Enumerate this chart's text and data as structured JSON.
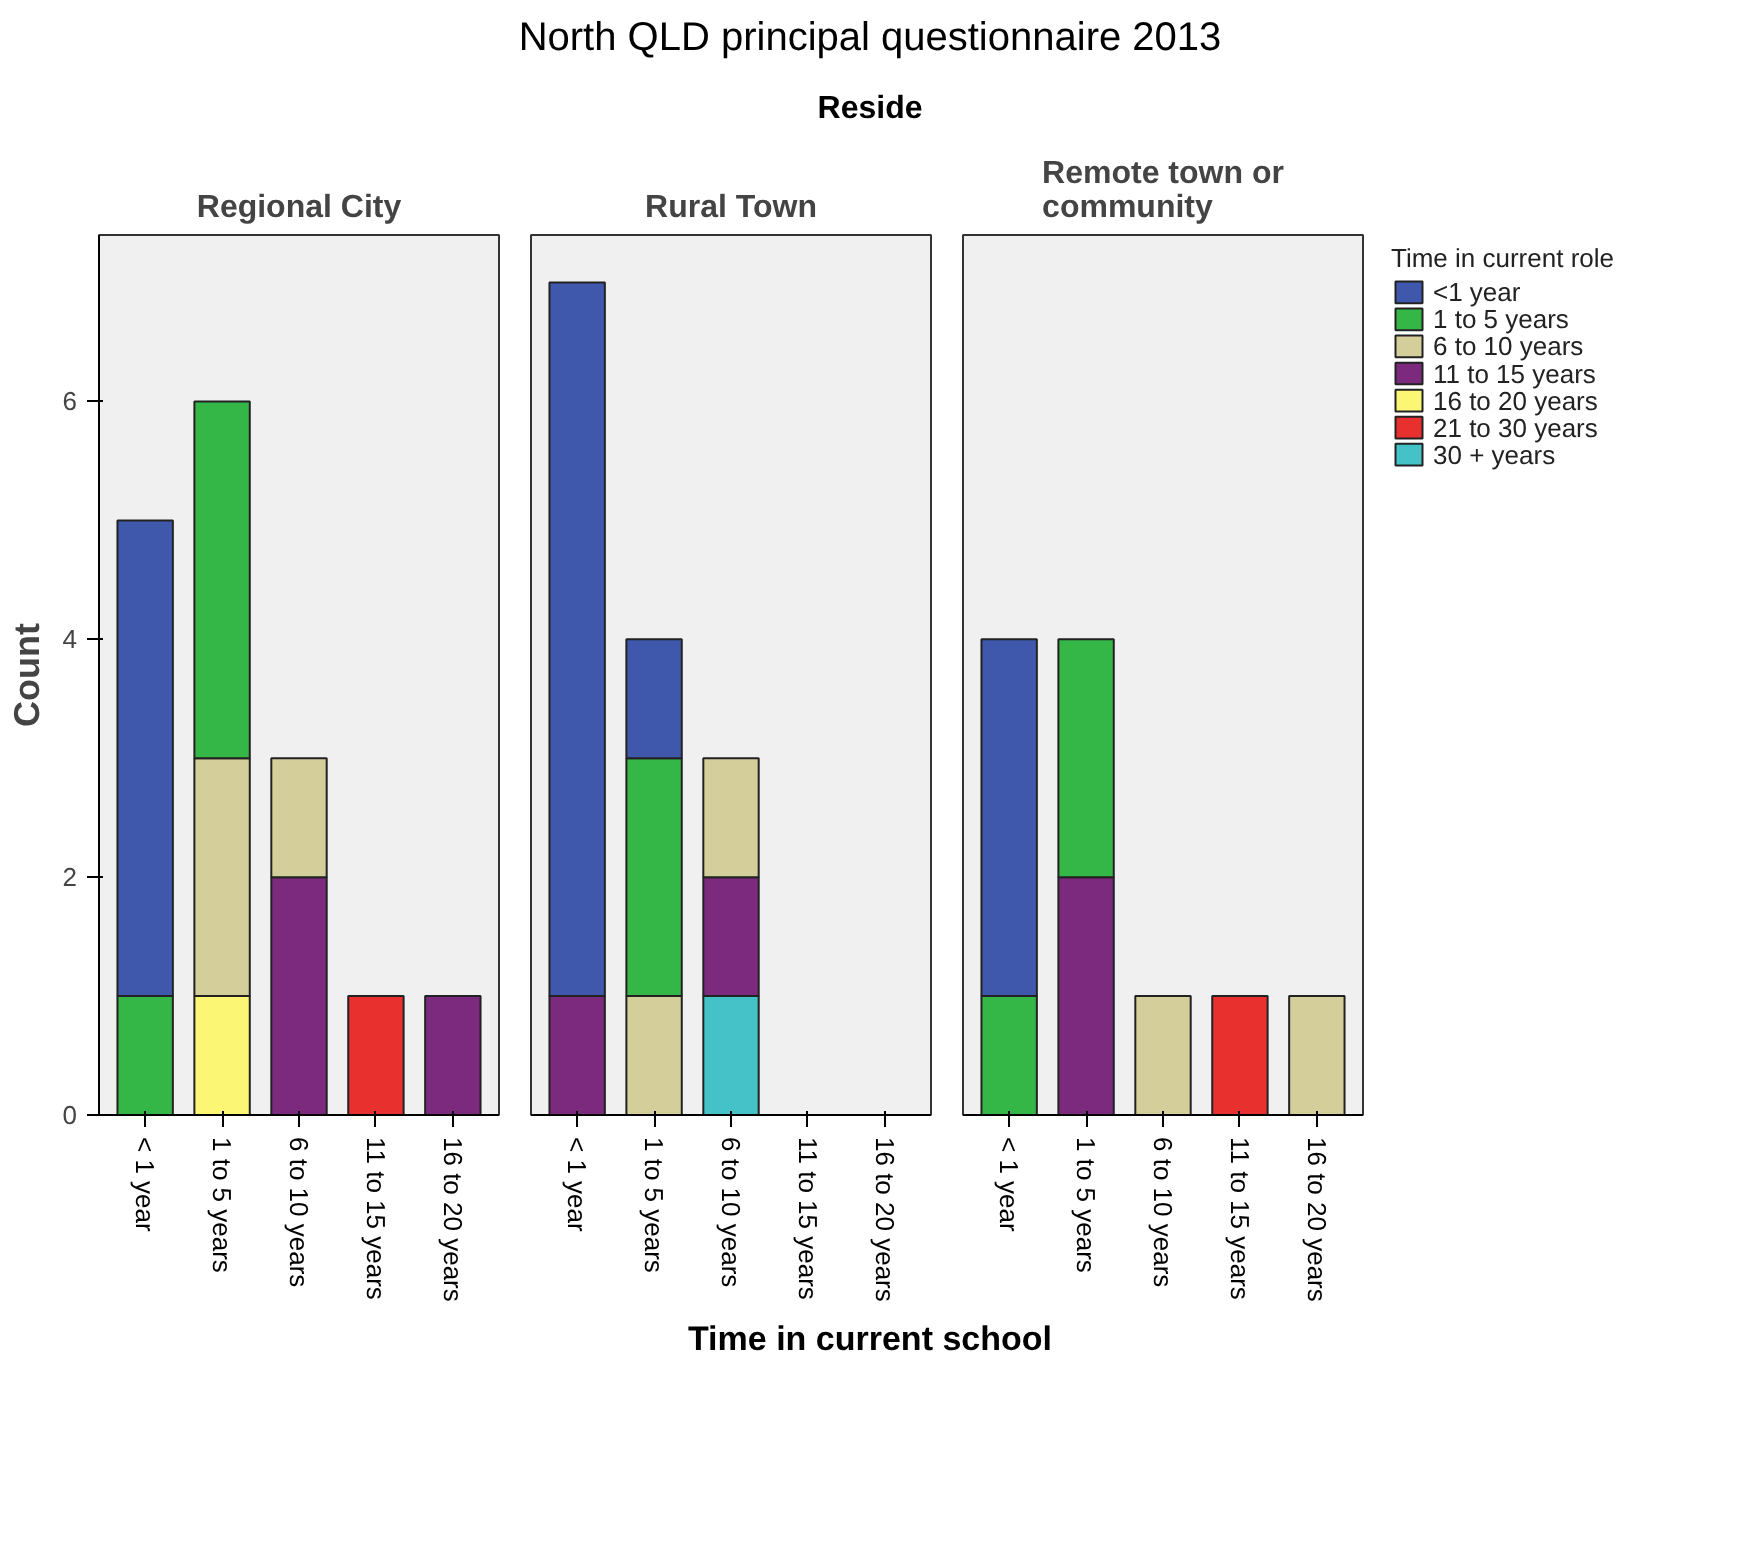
{
  "chart_data": [
    {
      "type": "bar",
      "stacked": true,
      "title": "Regional City",
      "annotations": [
        "North QLD principal questionnaire 2013",
        "Reside"
      ],
      "ylabel": "Count",
      "categories": [
        "< 1 year",
        "1 to 5 years",
        "6 to 10 years",
        "11 to 15 years",
        "16 to 20 years"
      ],
      "ylim": [
        0,
        7.4
      ],
      "yticks": [
        0,
        2,
        4,
        6
      ],
      "series": [
        {
          "color": "#45c2c7",
          "values": [
            null,
            null,
            null,
            null,
            null
          ]
        },
        {
          "color": "#e8312e",
          "values": [
            null,
            null,
            null,
            1,
            null
          ]
        },
        {
          "color": "#fbf774",
          "values": [
            null,
            1,
            null,
            null,
            null
          ]
        },
        {
          "color": "#7b2a7e",
          "values": [
            null,
            null,
            2,
            null,
            1
          ]
        },
        {
          "color": "#d4ce9a",
          "values": [
            null,
            2,
            1,
            null,
            null
          ]
        },
        {
          "color": "#35b748",
          "values": [
            1,
            3,
            null,
            null,
            null
          ]
        },
        {
          "color": "#3f58ab",
          "values": [
            4,
            null,
            null,
            null,
            null
          ]
        }
      ]
    },
    {
      "type": "bar",
      "stacked": true,
      "title": "Rural Town",
      "xlabel": "Time in current school",
      "tick_labels": "x",
      "categories": [
        "< 1 year",
        "1 to 5 years",
        "6 to 10 years",
        "11 to 15 years",
        "16 to 20 years"
      ],
      "ylim": [
        0,
        7.4
      ],
      "yticks": [
        0,
        2,
        4,
        6
      ],
      "series": [
        {
          "color": "#45c2c7",
          "values": [
            null,
            null,
            1,
            null,
            null
          ]
        },
        {
          "color": "#e8312e",
          "values": [
            null,
            null,
            null,
            null,
            null
          ]
        },
        {
          "color": "#fbf774",
          "values": [
            null,
            null,
            null,
            null,
            null
          ]
        },
        {
          "color": "#7b2a7e",
          "values": [
            1,
            null,
            1,
            null,
            null
          ]
        },
        {
          "color": "#d4ce9a",
          "values": [
            null,
            1,
            1,
            null,
            null
          ]
        },
        {
          "color": "#35b748",
          "values": [
            null,
            2,
            null,
            null,
            null
          ]
        },
        {
          "color": "#3f58ab",
          "values": [
            6,
            1,
            null,
            null,
            null
          ]
        }
      ]
    },
    {
      "type": "bar",
      "stacked": true,
      "title": "Remote town or community",
      "legend": "right",
      "legend_title": "Time in current role",
      "tick_labels": "x",
      "categories": [
        "< 1 year",
        "1 to 5 years",
        "6 to 10 years",
        "11 to 15 years",
        "16 to 20 years"
      ],
      "ylim": [
        0,
        7.4
      ],
      "yticks": [
        0,
        2,
        4,
        6
      ],
      "series": [
        {
          "name": "30 + years",
          "color": "#45c2c7",
          "values": [
            null,
            null,
            null,
            null,
            null
          ]
        },
        {
          "name": "21 to 30 years",
          "color": "#e8312e",
          "values": [
            null,
            null,
            null,
            1,
            null
          ]
        },
        {
          "name": "16 to 20 years",
          "color": "#fbf774",
          "values": [
            null,
            null,
            null,
            null,
            null
          ]
        },
        {
          "name": "11 to 15 years",
          "color": "#7b2a7e",
          "values": [
            null,
            2,
            null,
            null,
            null
          ]
        },
        {
          "name": "6 to 10 years",
          "color": "#d4ce9a",
          "values": [
            null,
            null,
            1,
            null,
            1
          ]
        },
        {
          "name": "1 to 5 years",
          "color": "#35b748",
          "values": [
            1,
            2,
            null,
            null,
            null
          ]
        },
        {
          "name": "<1 year",
          "color": "#3f58ab",
          "values": [
            3,
            null,
            null,
            null,
            null
          ]
        }
      ]
    }
  ]
}
